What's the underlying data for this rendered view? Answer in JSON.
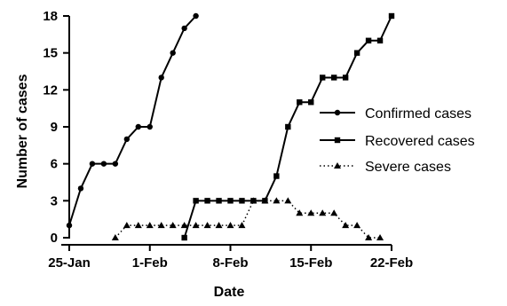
{
  "chart_data": {
    "type": "line",
    "xlabel": "Date",
    "ylabel": "Number of cases",
    "xlim": [
      "2020-01-25",
      "2020-02-22"
    ],
    "ylim": [
      0,
      18
    ],
    "x_ticks": [
      "25-Jan",
      "1-Feb",
      "8-Feb",
      "15-Feb",
      "22-Feb"
    ],
    "y_ticks": [
      "0",
      "3",
      "6",
      "9",
      "12",
      "15",
      "18"
    ],
    "grid": false,
    "legend_position": "right",
    "series": [
      {
        "name": "Confirmed cases",
        "marker": "circle",
        "line": "solid",
        "x": [
          "2020-01-25",
          "2020-01-26",
          "2020-01-27",
          "2020-01-28",
          "2020-01-29",
          "2020-01-30",
          "2020-01-31",
          "2020-02-01",
          "2020-02-02",
          "2020-02-03",
          "2020-02-04",
          "2020-02-05"
        ],
        "values": [
          1,
          4,
          6,
          6,
          6,
          8,
          9,
          9,
          13,
          15,
          17,
          18
        ]
      },
      {
        "name": "Recovered cases",
        "marker": "square",
        "line": "solid",
        "x": [
          "2020-02-04",
          "2020-02-05",
          "2020-02-06",
          "2020-02-07",
          "2020-02-08",
          "2020-02-09",
          "2020-02-10",
          "2020-02-11",
          "2020-02-12",
          "2020-02-13",
          "2020-02-14",
          "2020-02-15",
          "2020-02-16",
          "2020-02-17",
          "2020-02-18",
          "2020-02-19",
          "2020-02-20",
          "2020-02-21",
          "2020-02-22"
        ],
        "values": [
          0,
          3,
          3,
          3,
          3,
          3,
          3,
          3,
          5,
          9,
          11,
          11,
          13,
          13,
          13,
          15,
          16,
          16,
          18
        ]
      },
      {
        "name": "Severe cases",
        "marker": "triangle",
        "line": "dotted",
        "x": [
          "2020-01-29",
          "2020-01-30",
          "2020-01-31",
          "2020-02-01",
          "2020-02-02",
          "2020-02-03",
          "2020-02-04",
          "2020-02-05",
          "2020-02-06",
          "2020-02-07",
          "2020-02-08",
          "2020-02-09",
          "2020-02-10",
          "2020-02-11",
          "2020-02-12",
          "2020-02-13",
          "2020-02-14",
          "2020-02-15",
          "2020-02-16",
          "2020-02-17",
          "2020-02-18",
          "2020-02-19",
          "2020-02-20",
          "2020-02-21"
        ],
        "values": [
          0,
          1,
          1,
          1,
          1,
          1,
          1,
          1,
          1,
          1,
          1,
          1,
          3,
          3,
          3,
          3,
          2,
          2,
          2,
          2,
          1,
          1,
          0,
          0
        ]
      }
    ]
  }
}
